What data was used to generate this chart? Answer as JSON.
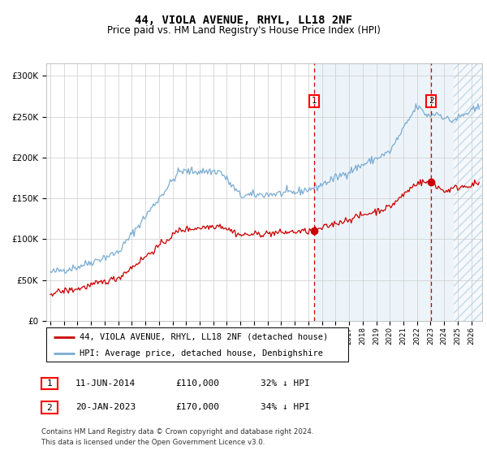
{
  "title": "44, VIOLA AVENUE, RHYL, LL18 2NF",
  "subtitle": "Price paid vs. HM Land Registry's House Price Index (HPI)",
  "ylabel_ticks": [
    "£0",
    "£50K",
    "£100K",
    "£150K",
    "£200K",
    "£250K",
    "£300K"
  ],
  "ytick_vals": [
    0,
    50000,
    100000,
    150000,
    200000,
    250000,
    300000
  ],
  "ylim": [
    0,
    315000
  ],
  "xlim_start": 1994.7,
  "xlim_end": 2026.8,
  "hpi_color": "#7aadd4",
  "property_color": "#cc0000",
  "bg_color": "#ffffff",
  "grid_color": "#cccccc",
  "sale1_date_num": 2014.44,
  "sale1_price": 110000,
  "sale1_label": "1",
  "sale2_date_num": 2023.05,
  "sale2_price": 170000,
  "sale2_label": "2",
  "shade_start": 2014.44,
  "hatch_start": 2024.7,
  "legend_line1": "44, VIOLA AVENUE, RHYL, LL18 2NF (detached house)",
  "legend_line2": "HPI: Average price, detached house, Denbighshire",
  "table_row1": [
    "1",
    "11-JUN-2014",
    "£110,000",
    "32% ↓ HPI"
  ],
  "table_row2": [
    "2",
    "20-JAN-2023",
    "£170,000",
    "34% ↓ HPI"
  ],
  "footnote1": "Contains HM Land Registry data © Crown copyright and database right 2024.",
  "footnote2": "This data is licensed under the Open Government Licence v3.0.",
  "title_fontsize": 10,
  "subtitle_fontsize": 8.5,
  "tick_fontsize": 7.5,
  "legend_fontsize": 7.5
}
